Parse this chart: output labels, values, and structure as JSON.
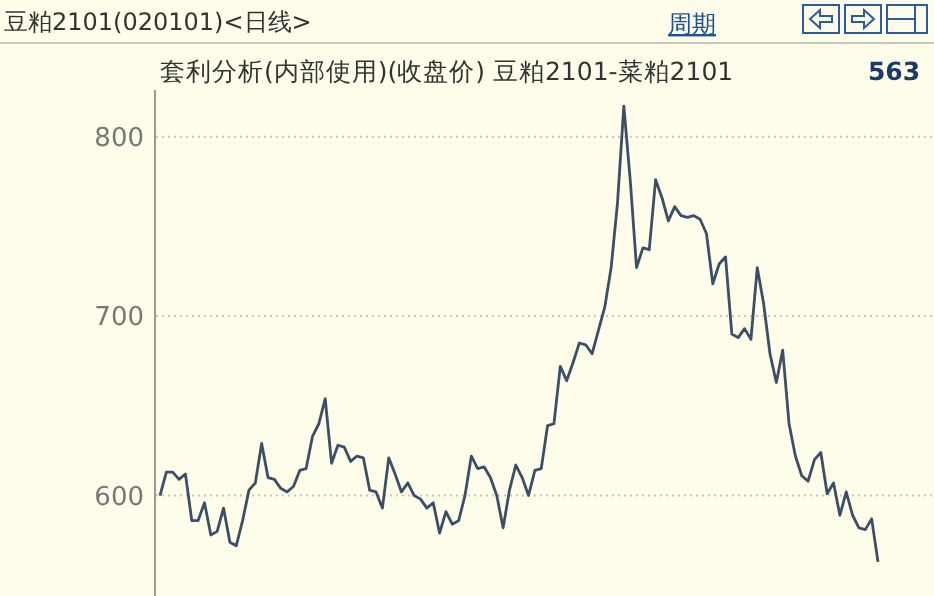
{
  "chart_data": {
    "type": "line",
    "title": "套利分析(内部使用)(收盘价) 豆粕2101-菜粕2101",
    "annotations": [
      "豆粕2101(020101)<日线>",
      "周期",
      "563"
    ],
    "categories": [
      null,
      null,
      null,
      null,
      null,
      null,
      null,
      null,
      null,
      null,
      null,
      null,
      null,
      null,
      null,
      null,
      null,
      null,
      null,
      null,
      null,
      null,
      null,
      null,
      null,
      null,
      null,
      null,
      null,
      null,
      null,
      null,
      null,
      null,
      null,
      null,
      null,
      null,
      null,
      null,
      null,
      null,
      null,
      null,
      null,
      null,
      null,
      null,
      null,
      null,
      null,
      null,
      null,
      null,
      null,
      null,
      null,
      null,
      null,
      null,
      null,
      null,
      null,
      null,
      null,
      null,
      null,
      null,
      null,
      null,
      null,
      null,
      null,
      null,
      null,
      null,
      null,
      null,
      null,
      null,
      null,
      null,
      null,
      null,
      null,
      null,
      null,
      null,
      null,
      null,
      null,
      null,
      null,
      null,
      null,
      null,
      null,
      null,
      null,
      null,
      null,
      null,
      null,
      null,
      null,
      null,
      null,
      null,
      null,
      null,
      null,
      null,
      null,
      null
    ],
    "series": [
      {
        "color": "#3b4f66",
        "values": [
          600,
          613,
          613,
          609,
          612,
          586,
          586,
          596,
          578,
          580,
          593,
          574,
          572,
          586,
          603,
          607,
          629,
          610,
          609,
          604,
          602,
          605,
          614,
          615,
          633,
          640,
          654,
          618,
          628,
          627,
          619,
          622,
          621,
          603,
          602,
          593,
          621,
          612,
          602,
          607,
          600,
          598,
          593,
          596,
          579,
          591,
          584,
          586,
          600,
          622,
          615,
          616,
          610,
          600,
          582,
          603,
          617,
          610,
          600,
          614,
          615,
          639,
          640,
          672,
          664,
          674,
          685,
          684,
          679,
          692,
          705,
          727,
          763,
          817,
          776,
          727,
          738,
          737,
          776,
          766,
          753,
          761,
          756,
          755,
          756,
          754,
          746,
          718,
          729,
          733,
          690,
          688,
          693,
          687,
          727,
          707,
          679,
          663,
          681,
          640,
          622,
          611,
          608,
          620,
          624,
          601,
          607,
          589,
          602,
          589,
          582,
          581,
          587,
          563
        ]
      }
    ],
    "ylim": [
      544,
      826
    ],
    "yticks": [
      600,
      700,
      800
    ],
    "grid": "y",
    "line_style": "solid",
    "marker": "none",
    "tick_labels": "y"
  }
}
